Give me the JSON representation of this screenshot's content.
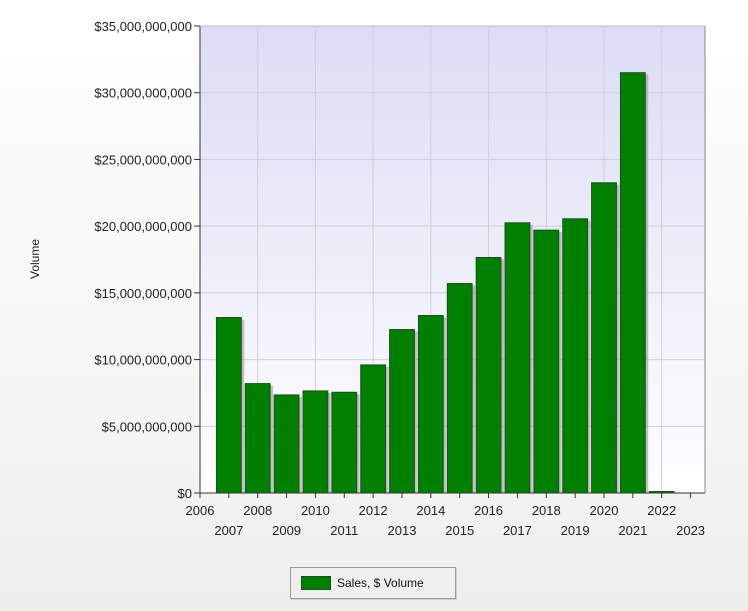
{
  "chart_data": {
    "type": "bar",
    "ylabel": "Volume",
    "ylim": [
      0,
      35000000000
    ],
    "y_ticks": [
      "$0",
      "$5,000,000,000",
      "$10,000,000,000",
      "$15,000,000,000",
      "$20,000,000,000",
      "$25,000,000,000",
      "$30,000,000,000",
      "$35,000,000,000"
    ],
    "xlim": [
      2006,
      2023
    ],
    "x_ticks_top": [
      "2006",
      "2008",
      "2010",
      "2012",
      "2014",
      "2016",
      "2018",
      "2020",
      "2022"
    ],
    "x_ticks_bottom": [
      "2007",
      "2009",
      "2011",
      "2013",
      "2015",
      "2017",
      "2019",
      "2021",
      "2023"
    ],
    "grid": true,
    "legend_position": "bottom-center",
    "series": [
      {
        "name": "Sales, $ Volume",
        "color": "#008000",
        "x": [
          2007,
          2008,
          2009,
          2010,
          2011,
          2012,
          2013,
          2014,
          2015,
          2016,
          2017,
          2018,
          2019,
          2020,
          2021,
          2022
        ],
        "values": [
          13150000000,
          8200000000,
          7350000000,
          7650000000,
          7550000000,
          9600000000,
          12250000000,
          13300000000,
          15700000000,
          17650000000,
          20250000000,
          19700000000,
          20550000000,
          23250000000,
          31500000000,
          50000000
        ]
      }
    ]
  }
}
